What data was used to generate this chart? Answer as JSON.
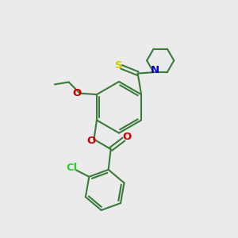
{
  "background_color": "#ebebeb",
  "bond_color": "#3a7a3a",
  "S_color": "#cccc00",
  "N_color": "#0000cc",
  "O_color": "#cc0000",
  "Cl_color": "#33cc33",
  "line_width": 1.5,
  "figsize": [
    3.0,
    3.0
  ],
  "dpi": 100,
  "xlim": [
    0,
    10
  ],
  "ylim": [
    0,
    10
  ]
}
